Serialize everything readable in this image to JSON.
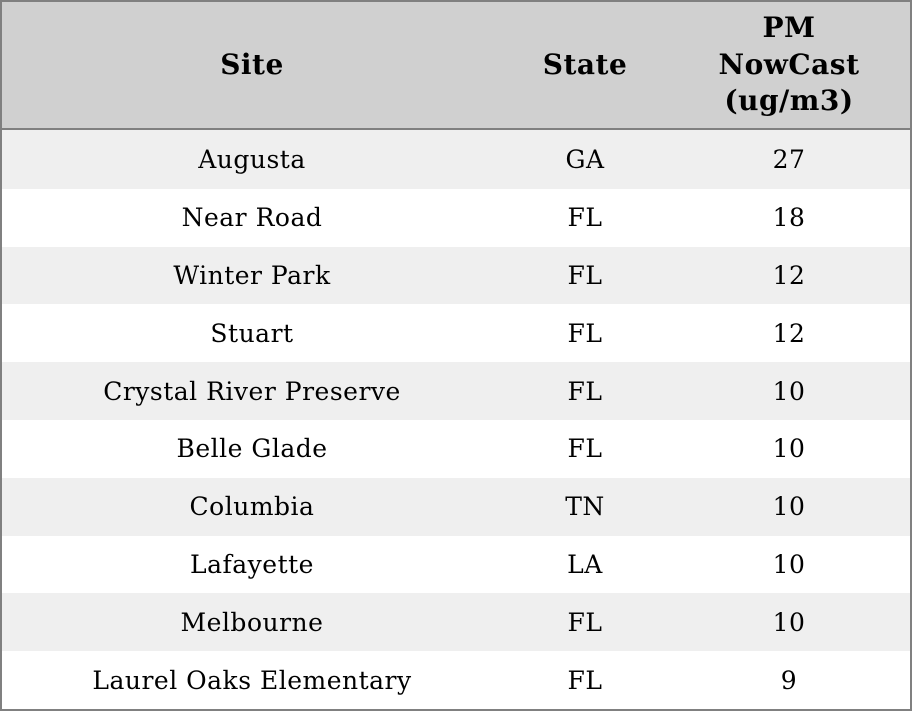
{
  "table": {
    "columns": [
      {
        "key": "site",
        "label": "Site"
      },
      {
        "key": "state",
        "label": "State"
      },
      {
        "key": "pm",
        "label": "PM NowCast (ug/m3)"
      }
    ],
    "rows": [
      {
        "site": "Augusta",
        "state": "GA",
        "pm": "27"
      },
      {
        "site": "Near Road",
        "state": "FL",
        "pm": "18"
      },
      {
        "site": "Winter Park",
        "state": "FL",
        "pm": "12"
      },
      {
        "site": "Stuart",
        "state": "FL",
        "pm": "12"
      },
      {
        "site": "Crystal River Preserve",
        "state": "FL",
        "pm": "10"
      },
      {
        "site": "Belle Glade",
        "state": "FL",
        "pm": "10"
      },
      {
        "site": "Columbia",
        "state": "TN",
        "pm": "10"
      },
      {
        "site": "Lafayette",
        "state": "LA",
        "pm": "10"
      },
      {
        "site": "Melbourne",
        "state": "FL",
        "pm": "10"
      },
      {
        "site": "Laurel Oaks Elementary",
        "state": "FL",
        "pm": "9"
      }
    ]
  },
  "colors": {
    "header_bg": "#d0d0d0",
    "row_alt_bg": "#efefef",
    "row_bg": "#ffffff",
    "border": "#808080",
    "text": "#000000"
  },
  "chart_data": {
    "type": "table",
    "title": "",
    "columns": [
      "Site",
      "State",
      "PM NowCast (ug/m3)"
    ],
    "rows": [
      [
        "Augusta",
        "GA",
        27
      ],
      [
        "Near Road",
        "FL",
        18
      ],
      [
        "Winter Park",
        "FL",
        12
      ],
      [
        "Stuart",
        "FL",
        12
      ],
      [
        "Crystal River Preserve",
        "FL",
        10
      ],
      [
        "Belle Glade",
        "FL",
        10
      ],
      [
        "Columbia",
        "TN",
        10
      ],
      [
        "Lafayette",
        "LA",
        10
      ],
      [
        "Melbourne",
        "FL",
        10
      ],
      [
        "Laurel Oaks Elementary",
        "FL",
        9
      ]
    ],
    "striped": true,
    "header_position": "top"
  }
}
